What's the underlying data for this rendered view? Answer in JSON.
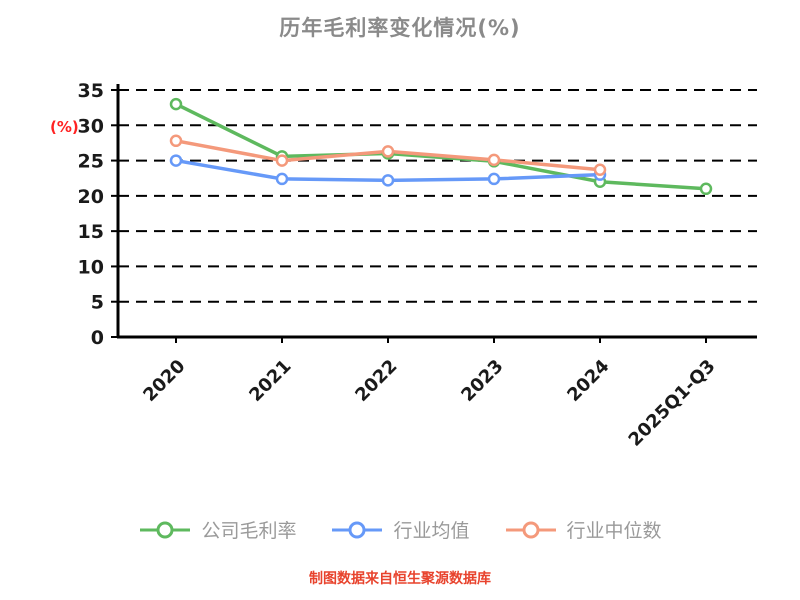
{
  "title": "历年毛利率变化情况(%)",
  "ylabel": "(%)",
  "caption": "制图数据来自恒生聚源数据库",
  "chart_data": {
    "type": "line",
    "categories": [
      "2020",
      "2021",
      "2022",
      "2023",
      "2024",
      "2025Q1-Q3"
    ],
    "series": [
      {
        "name": "公司毛利率",
        "color": "#5eb95e",
        "values": [
          33,
          25.6,
          26,
          24.9,
          22,
          21
        ]
      },
      {
        "name": "行业均值",
        "color": "#6699f8",
        "values": [
          25,
          22.4,
          22.2,
          22.4,
          23,
          null
        ]
      },
      {
        "name": "行业中位数",
        "color": "#f4997b",
        "values": [
          27.8,
          25,
          26.3,
          25.1,
          23.7,
          null
        ]
      }
    ],
    "ylim": [
      0,
      35
    ],
    "yticks": [
      0,
      5,
      10,
      15,
      20,
      25,
      30,
      35
    ],
    "grid": "dashed-horizontal",
    "legend_position": "bottom",
    "marker": "open-circle"
  },
  "colors": {
    "title": "#8a8a8a",
    "axis": "#000000",
    "tick_label": "#1a1a1a",
    "ylabel": "#ff2222",
    "caption": "#e8432d",
    "legend_text": "#9a9a9a",
    "background": "#ffffff"
  }
}
